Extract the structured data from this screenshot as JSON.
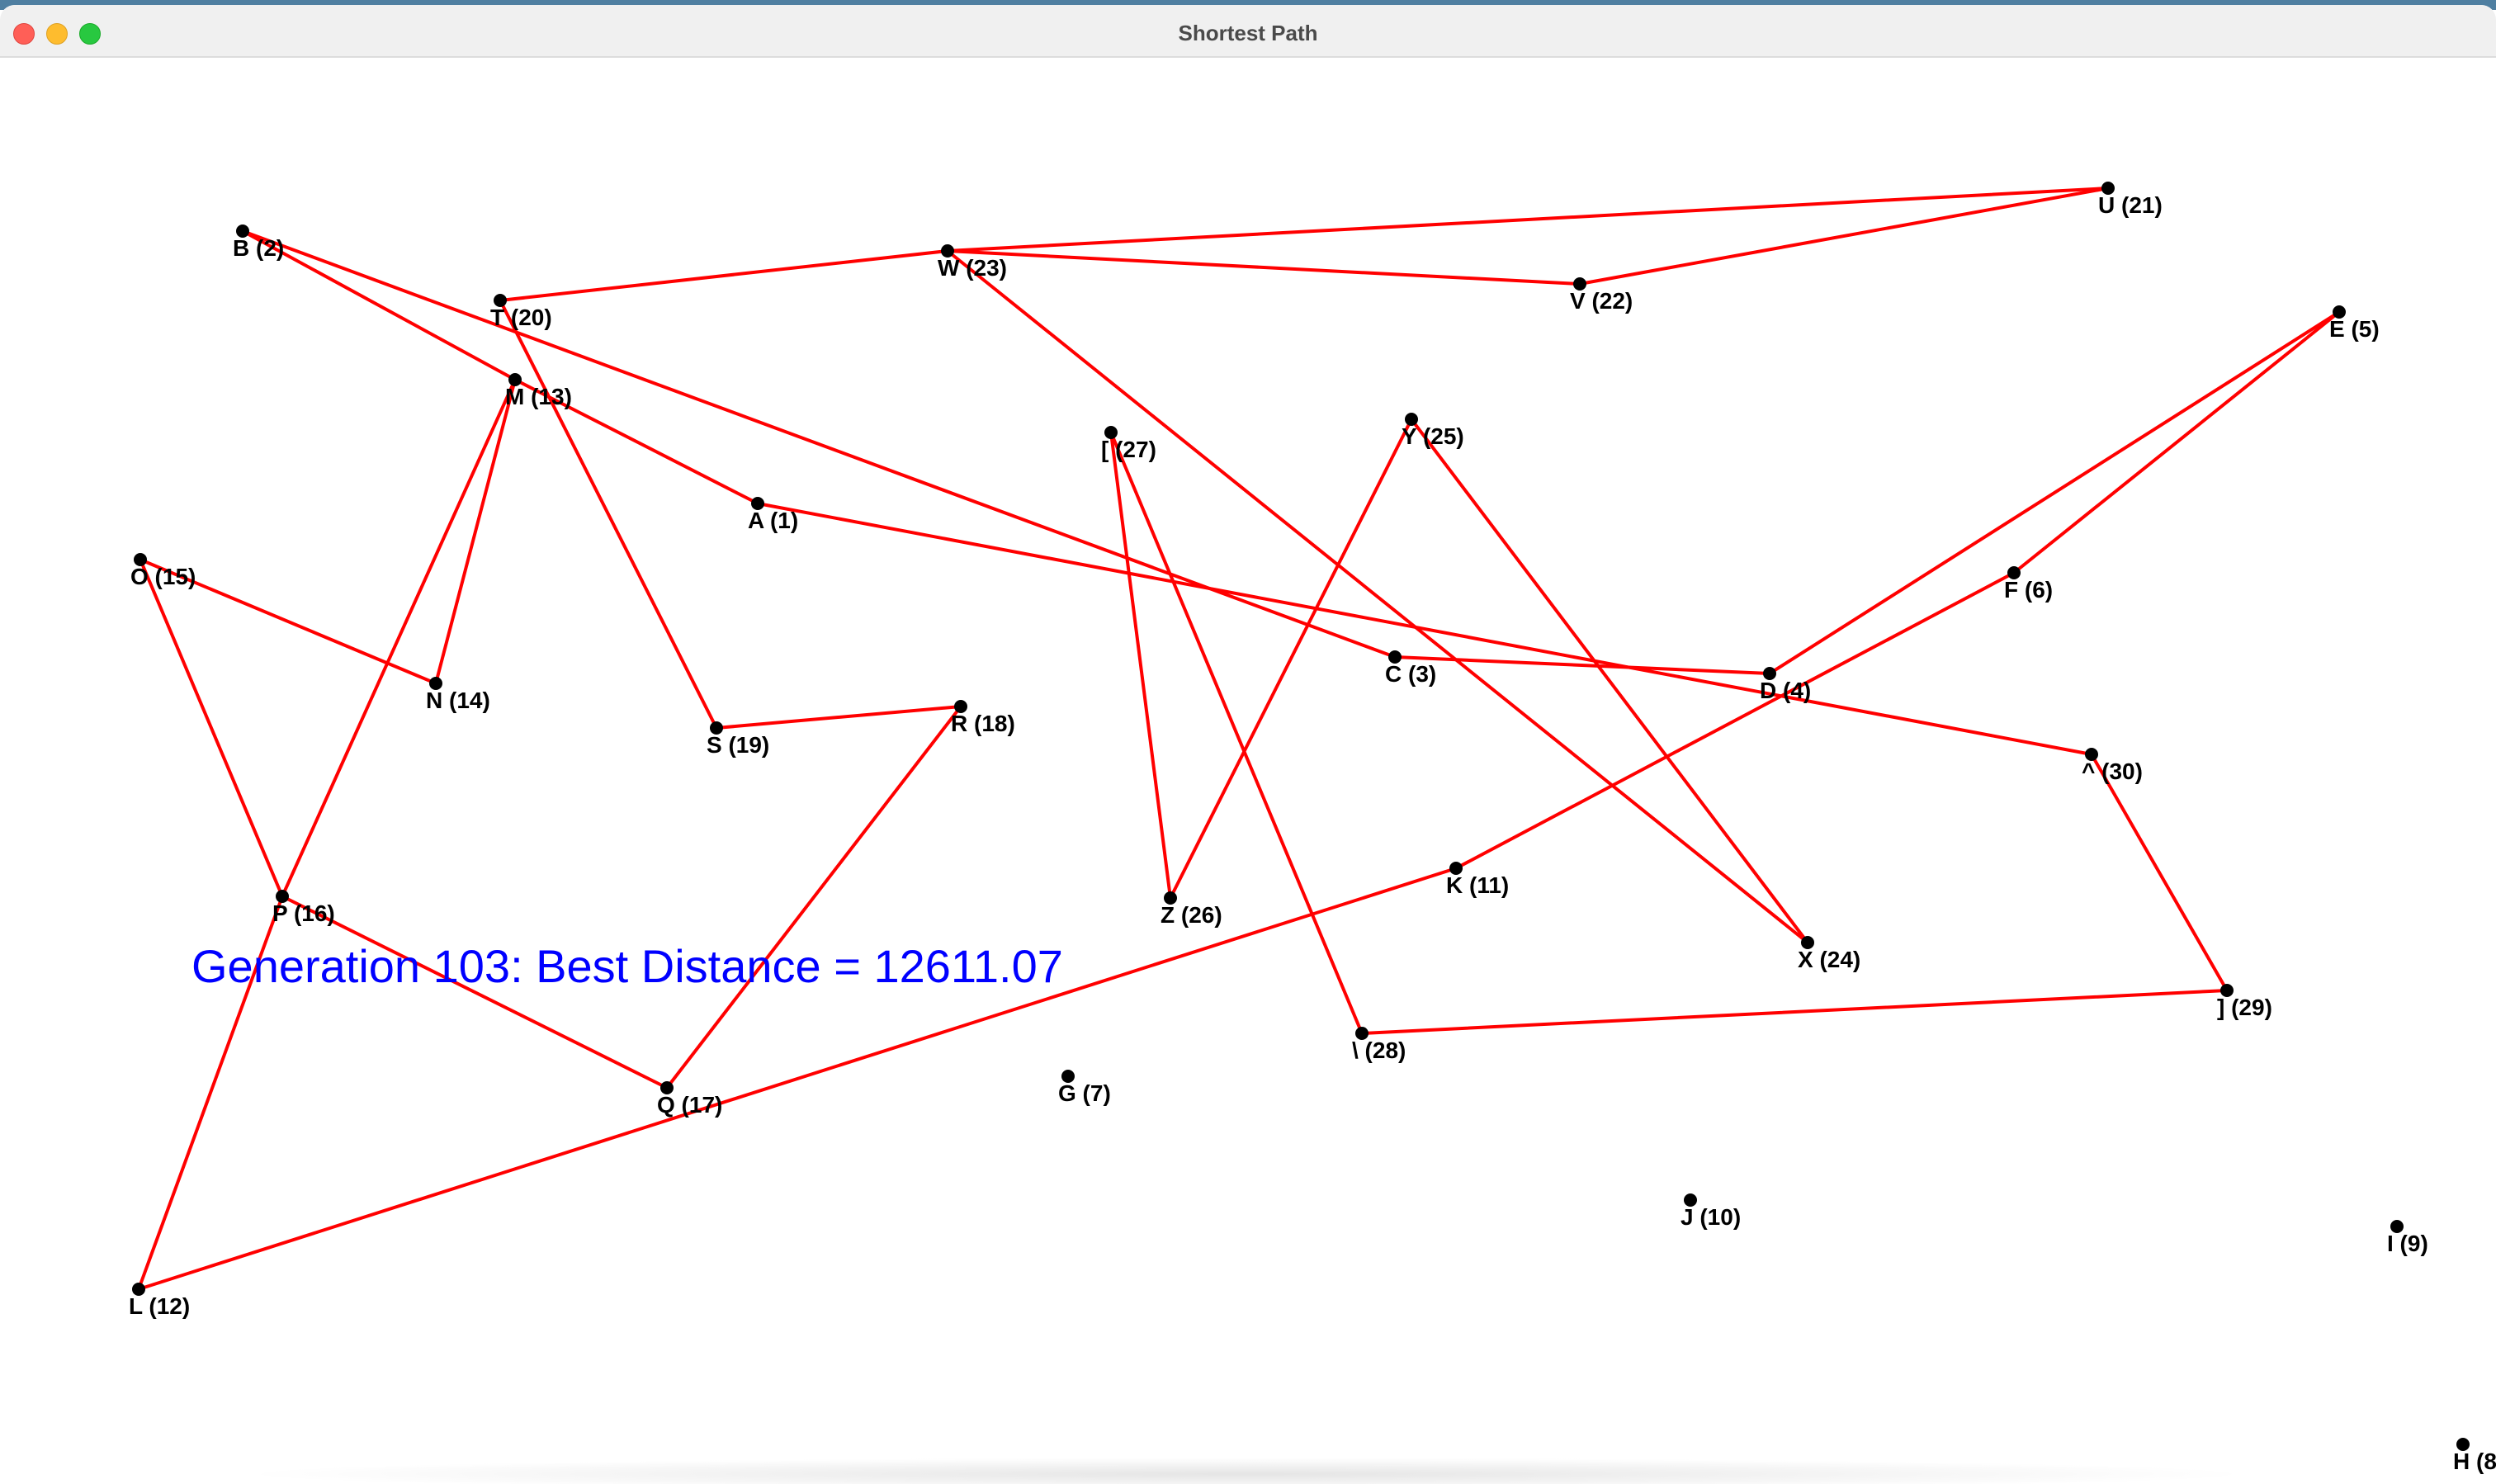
{
  "window": {
    "title": "Shortest Path"
  },
  "status_text": "Generation 103: Best Distance = 12611.07",
  "colors": {
    "path": "#ff0000",
    "node": "#000000",
    "status": "#0000ff"
  },
  "nodes": [
    {
      "label": "A (1)"
    },
    {
      "label": "B (2)"
    },
    {
      "label": "C (3)"
    },
    {
      "label": "D (4)"
    },
    {
      "label": "E (5)"
    },
    {
      "label": "F (6)"
    },
    {
      "label": "G (7)"
    },
    {
      "label": "H (8"
    },
    {
      "label": "I (9)"
    },
    {
      "label": "J (10)"
    },
    {
      "label": "K (11)"
    },
    {
      "label": "L (12)"
    },
    {
      "label": "M (13)"
    },
    {
      "label": "N (14)"
    },
    {
      "label": "O (15)"
    },
    {
      "label": "P (16)"
    },
    {
      "label": "Q (17)"
    },
    {
      "label": "R (18)"
    },
    {
      "label": "S (19)"
    },
    {
      "label": "T (20)"
    },
    {
      "label": "U (21)"
    },
    {
      "label": "V (22)"
    },
    {
      "label": "W (23)"
    },
    {
      "label": "X (24)"
    },
    {
      "label": "Y (25)"
    },
    {
      "label": "Z (26)"
    },
    {
      "label": "[ (27)"
    },
    {
      "label": "\\ (28)"
    },
    {
      "label": "] (29)"
    },
    {
      "label": "^ (30)"
    }
  ]
}
